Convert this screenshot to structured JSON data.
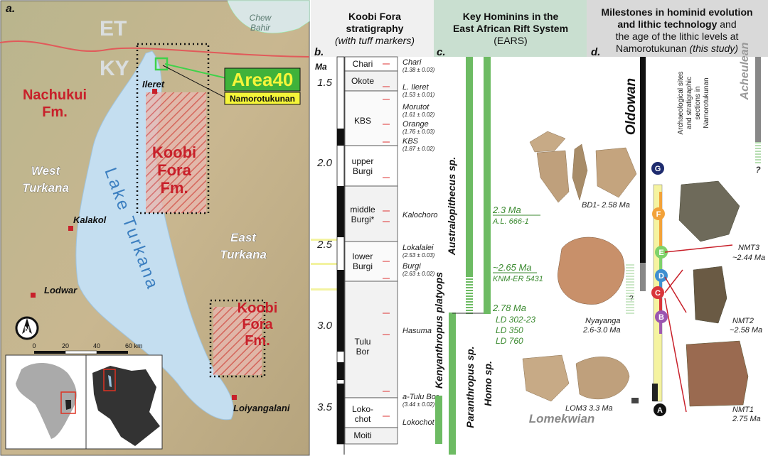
{
  "map": {
    "panel_label": "a.",
    "countries": [
      "ET",
      "KY"
    ],
    "chew_bahir": [
      "Chew",
      "Bahir"
    ],
    "area": "Area40",
    "site": "Namorotukunan",
    "formations": {
      "nachukui": [
        "Nachukui",
        "Fm."
      ],
      "koobi_fora_north": [
        "Koobi",
        "Fora",
        "Fm."
      ],
      "koobi_fora_south": [
        "Koobi",
        "Fora",
        "Fm."
      ]
    },
    "regions": {
      "west": [
        "West",
        "Turkana"
      ],
      "east": [
        "East",
        "Turkana"
      ]
    },
    "lake": "Lake Turkana",
    "towns": [
      "Ileret",
      "Kalakol",
      "Lodwar",
      "Loiyangalani"
    ],
    "scale": [
      "0",
      "20",
      "40",
      "60 km"
    ],
    "compass": "N"
  },
  "stratigraphy": {
    "panel_label": "b.",
    "title": [
      "Koobi Fora",
      "stratigraphy"
    ],
    "subtitle": "(with tuff markers)",
    "axis_unit": "Ma",
    "ticks": [
      "1.5",
      "2.0",
      "2.5",
      "3.0",
      "3.5"
    ],
    "units": [
      [
        "Chari"
      ],
      [
        "Okote"
      ],
      [
        "KBS"
      ],
      [
        "upper",
        "Burgi"
      ],
      [
        "middle",
        "Burgi*"
      ],
      [
        "lower",
        "Burgi"
      ],
      [
        "Tulu",
        "Bor"
      ],
      [
        "Loko-",
        "chot"
      ],
      [
        "Moiti"
      ]
    ],
    "tuffs": [
      {
        "name": "Chari",
        "age": "(1.38 ± 0.03)"
      },
      {
        "name": "L. Ileret",
        "age": "(1.53 ± 0.01)"
      },
      {
        "name": "Morutot",
        "age": "(1.61 ± 0.02)"
      },
      {
        "name": "Orange",
        "age": "(1.76 ± 0.03)"
      },
      {
        "name": "KBS",
        "age": "(1.87 ± 0.02)"
      },
      {
        "name": "Kalochoro"
      },
      {
        "name": "Lokalalei",
        "age": "(2.53 ± 0.03)"
      },
      {
        "name": "Burgi",
        "age": "(2.63 ± 0.02)"
      },
      {
        "name": "Hasuma"
      },
      {
        "name": "a-Tulu Bor",
        "age": "(3.44 ± 0.02)"
      },
      {
        "name": "Lokochot"
      }
    ]
  },
  "hominins": {
    "panel_label": "c.",
    "title": [
      "Key Hominins in the",
      "East African Rift System"
    ],
    "subtitle": "(EARS)",
    "taxa": [
      "Kenyanthropus platyops",
      "Australopithecus sp.",
      "Paranthropus sp.",
      "Homo sp."
    ],
    "dates": [
      {
        "age": "2.3 Ma",
        "specimens": [
          "A.L. 666-1"
        ]
      },
      {
        "age": "~2.65 Ma",
        "specimens": [
          "KNM-ER 5431"
        ]
      },
      {
        "age": "2.78 Ma",
        "specimens": [
          "LD 302-23",
          "LD 350",
          "LD 760"
        ]
      }
    ]
  },
  "milestones": {
    "panel_label": "d.",
    "title": [
      "Milestones in hominid evolution",
      "and lithic technology",
      "and",
      "the age of the lithic levels at",
      "Namorotukunan",
      "(this study)"
    ],
    "industries": [
      "Oldowan",
      "Acheulean",
      "Lomekwian"
    ],
    "sites": [
      {
        "name": "BD1- 2.58 Ma"
      },
      {
        "name": "Nyayanga",
        "age": "2.6-3.0 Ma"
      },
      {
        "name": "LOM3 3.3 Ma"
      }
    ],
    "section_label": [
      "Archaeological sites",
      "and stratigraphic",
      "sections in",
      "Namorotukunan"
    ],
    "levels": [
      "A",
      "B",
      "C",
      "D",
      "E",
      "F",
      "G"
    ],
    "artifacts": [
      {
        "name": "NMT3",
        "age": "~2.44 Ma"
      },
      {
        "name": "NMT2",
        "age": "~2.58 Ma"
      },
      {
        "name": "NMT1",
        "age": "2.75 Ma"
      }
    ],
    "uncertain": "?"
  }
}
